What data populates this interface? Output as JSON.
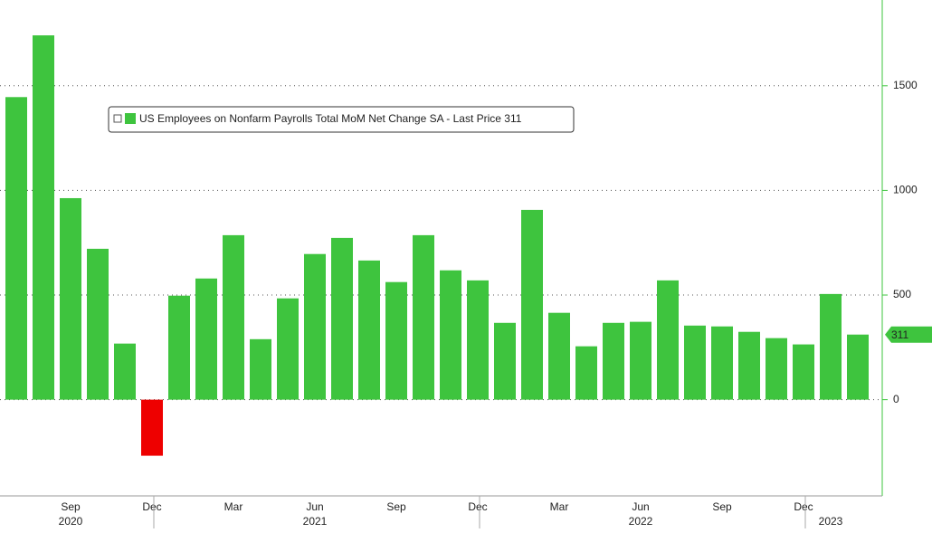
{
  "chart_data": {
    "type": "bar",
    "categories": [
      null,
      null,
      "Sep",
      null,
      null,
      "Dec",
      null,
      null,
      "Mar",
      null,
      null,
      "Jun",
      null,
      null,
      "Sep",
      null,
      null,
      "Dec",
      null,
      null,
      "Mar",
      null,
      null,
      "Jun",
      null,
      null,
      "Sep",
      null,
      null,
      "Dec",
      null,
      null
    ],
    "year_labels": [
      null,
      null,
      "2020",
      null,
      null,
      null,
      null,
      null,
      null,
      null,
      null,
      "2021",
      null,
      null,
      null,
      null,
      null,
      null,
      null,
      null,
      null,
      null,
      null,
      "2022",
      null,
      null,
      null,
      null,
      null,
      null,
      "2023",
      null
    ],
    "series": [
      {
        "name": "US Employees on Nonfarm Payrolls Total MoM Net Change SA - Last Price 311",
        "color": "#3ec43e",
        "negative_color": "#ee0000",
        "values": [
          1446,
          1741,
          963,
          721,
          268,
          -268,
          497,
          579,
          786,
          289,
          484,
          696,
          773,
          665,
          562,
          786,
          618,
          570,
          367,
          907,
          415,
          255,
          367,
          372,
          570,
          354,
          350,
          324,
          294,
          264,
          505,
          311
        ]
      }
    ],
    "ylim": [
      -460,
      1910
    ],
    "yticks": [
      0,
      500,
      1000,
      1500
    ],
    "grid": true,
    "legend": "top-left",
    "y_axis_side": "right"
  }
}
